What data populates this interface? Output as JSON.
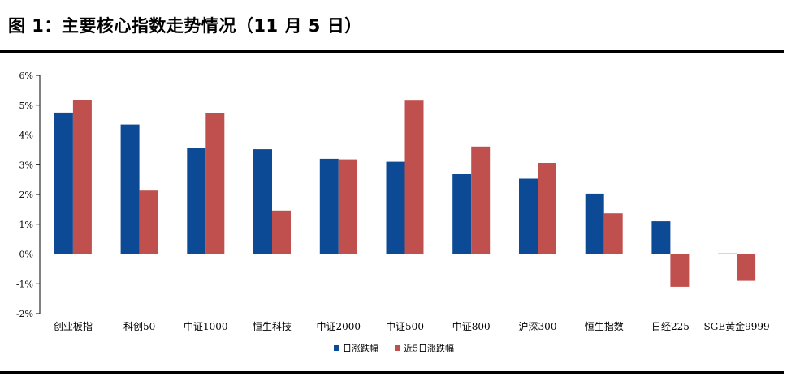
{
  "figure": {
    "title": "图 1：主要核心指数走势情况（11 月 5 日）"
  },
  "colors": {
    "series1": "#0d4a96",
    "series2": "#c0504d",
    "axis": "#000000"
  },
  "chart_data": {
    "type": "bar",
    "title": "",
    "xlabel": "",
    "ylabel": "",
    "categories": [
      "创业板指",
      "科创50",
      "中证1000",
      "恒生科技",
      "中证2000",
      "中证500",
      "中证800",
      "沪深300",
      "恒生指数",
      "日经225",
      "SGE黄金9999"
    ],
    "series": [
      {
        "name": "日涨跌幅",
        "values": [
          4.75,
          4.35,
          3.55,
          3.52,
          3.2,
          3.1,
          2.68,
          2.53,
          2.03,
          1.1,
          0.02
        ]
      },
      {
        "name": "近5日涨跌幅",
        "values": [
          5.17,
          2.13,
          4.74,
          1.46,
          3.18,
          5.15,
          3.61,
          3.06,
          1.37,
          -1.1,
          -0.9
        ]
      }
    ],
    "yticks": [
      "-2%",
      "-1%",
      "0%",
      "1%",
      "2%",
      "3%",
      "4%",
      "5%",
      "6%"
    ],
    "ylim": [
      -2,
      6
    ],
    "grid": false,
    "legend": "bottom-center"
  }
}
